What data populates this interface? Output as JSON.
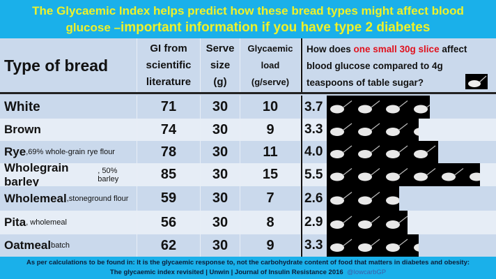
{
  "title": {
    "line1": "The Glycaemic Index helps predict how these bread types might affect blood",
    "line2_small": "glucose –",
    "line2_big": "important information if you have type 2 diabetes"
  },
  "header": {
    "type": "Type of bread",
    "gi": [
      "GI from",
      "scientific",
      "literature"
    ],
    "serve": [
      "Serve",
      "size",
      "(g)"
    ],
    "load": [
      "Glycaemic",
      "load",
      "(g/serve)"
    ],
    "question_pre": "How does ",
    "question_red": "one small 30g slice",
    "question_post": " affect blood glucose compared to 4g teaspoons of table sugar?",
    "icon": "sugar-teaspoon-icon"
  },
  "rows": [
    {
      "name": "White",
      "note": "",
      "gi": "71",
      "serve": "30",
      "load": "10",
      "teaspoons": "3.7"
    },
    {
      "name": "Brown",
      "note": "",
      "gi": "74",
      "serve": "30",
      "load": "9",
      "teaspoons": "3.3"
    },
    {
      "name": "Rye",
      "note": " ,69% whole-grain rye flour",
      "gi": "78",
      "serve": "30",
      "load": "11",
      "teaspoons": "4.0"
    },
    {
      "name": "Wholegrain barley",
      "note": ", 50% barley",
      "gi": "85",
      "serve": "30",
      "load": "15",
      "teaspoons": "5.5"
    },
    {
      "name": "Wholemeal",
      "note": ",stoneground flour",
      "gi": "59",
      "serve": "30",
      "load": "7",
      "teaspoons": "2.6"
    },
    {
      "name": "Pita",
      "note": ", wholemeal",
      "gi": "56",
      "serve": "30",
      "load": "8",
      "teaspoons": "2.9"
    },
    {
      "name": "Oatmeal",
      "note": " batch",
      "gi": "62",
      "serve": "30",
      "load": "9",
      "teaspoons": "3.3"
    }
  ],
  "footer": {
    "line1": "As per calculations to be found in: It is the glycaemic response to, not the carbohydrate content of food that matters in diabetes and obesity:",
    "line2": "The glycaemic index revisited | Unwin | Journal of Insulin Resistance 2016",
    "handle": "@lowcarbGP"
  },
  "colors": {
    "banner": "#1ab0ea",
    "title_text": "#eef22a",
    "highlight": "#e0121e",
    "row_a": "#cad9ec",
    "row_b": "#e6edf6"
  }
}
